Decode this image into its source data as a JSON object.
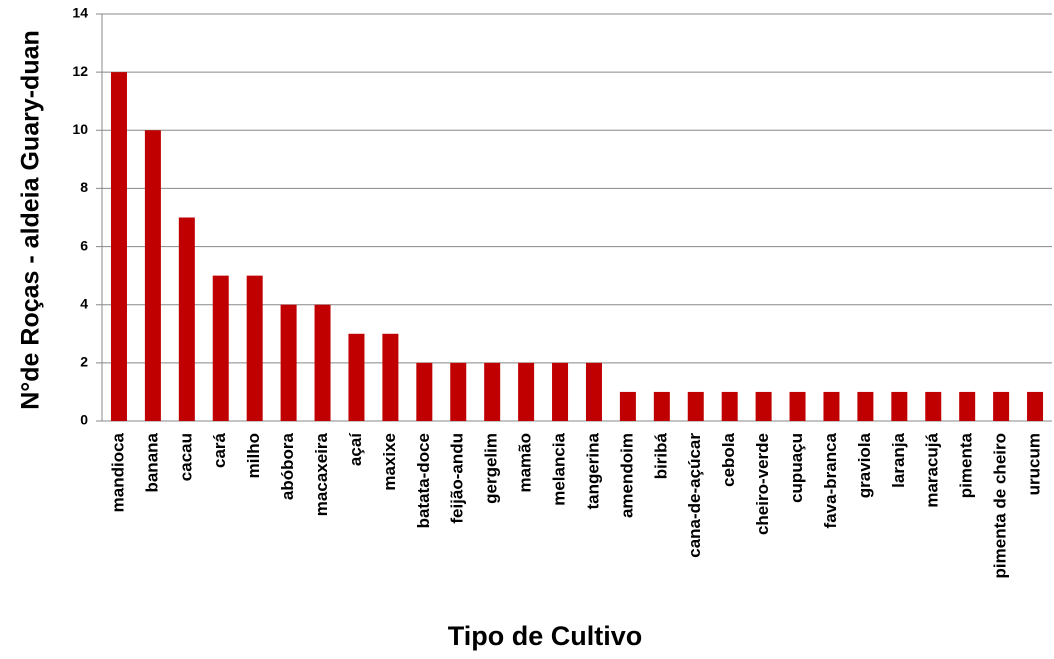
{
  "chart_data": {
    "type": "bar",
    "x_label": "Tipo de Cultivo",
    "y_label": "N°de Roças - aldeia Guary-duan",
    "categories": [
      "mandioca",
      "banana",
      "cacau",
      "cará",
      "milho",
      "abóbora",
      "macaxeira",
      "açaí",
      "maxixe",
      "batata-doce",
      "feijão-andu",
      "gergelim",
      "mamão",
      "melancia",
      "tangerina",
      "amendoim",
      "biribá",
      "cana-de-açúcar",
      "cebola",
      "cheiro-verde",
      "cupuaçu",
      "fava-branca",
      "graviola",
      "laranja",
      "maracujá",
      "pimenta",
      "pimenta de cheiro",
      "urucum"
    ],
    "values": [
      12,
      10,
      7,
      5,
      5,
      4,
      4,
      3,
      3,
      2,
      2,
      2,
      2,
      2,
      2,
      1,
      1,
      1,
      1,
      1,
      1,
      1,
      1,
      1,
      1,
      1,
      1,
      1
    ],
    "color": "#c00000",
    "ylim": [
      0,
      14
    ],
    "yticks": [
      0,
      2,
      4,
      6,
      8,
      10,
      12,
      14
    ],
    "grid": true
  }
}
